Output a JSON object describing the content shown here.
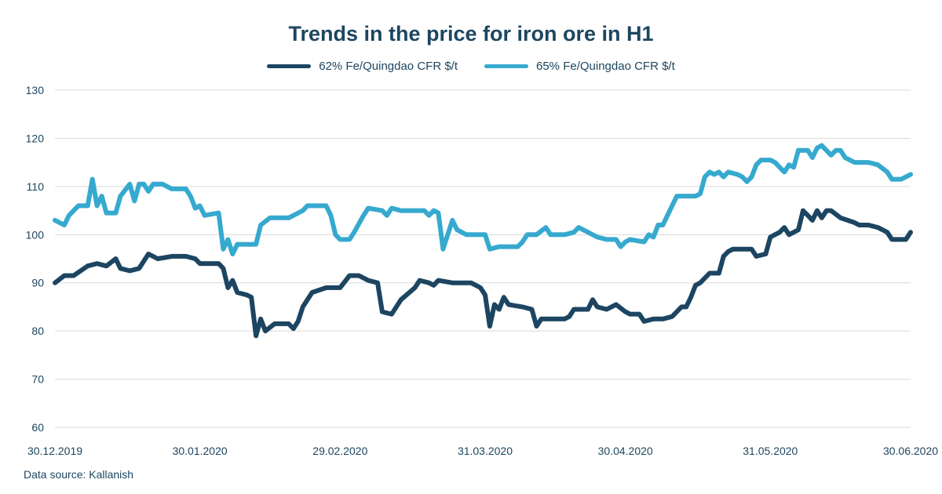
{
  "colors": {
    "series_62": "#1c4561",
    "series_65": "#36a9cf",
    "grid": "#d9d9d9",
    "text": "#1d4660"
  },
  "chart_data": {
    "type": "line",
    "title": "Trends in the price for iron ore in H1",
    "xlabel": "",
    "ylabel": "",
    "ylim": [
      60,
      130
    ],
    "yticks": [
      60,
      70,
      80,
      90,
      100,
      110,
      120,
      130
    ],
    "xlim": [
      "2019-12-30",
      "2020-06-30"
    ],
    "x_tick_labels": [
      "30.12.2019",
      "30.01.2020",
      "29.02.2020",
      "31.03.2020",
      "30.04.2020",
      "31.05.2020",
      "30.06.2020"
    ],
    "grid": true,
    "legend_position": "top-center",
    "source": "Data source: Kallanish",
    "series": [
      {
        "name": "62% Fe/Quingdao CFR $/t",
        "color": "#1c4561",
        "points": [
          [
            "2019-12-30",
            90
          ],
          [
            "2020-01-01",
            91.5
          ],
          [
            "2020-01-03",
            91.5
          ],
          [
            "2020-01-06",
            93.5
          ],
          [
            "2020-01-08",
            94
          ],
          [
            "2020-01-10",
            93.5
          ],
          [
            "2020-01-12",
            95
          ],
          [
            "2020-01-13",
            93
          ],
          [
            "2020-01-15",
            92.5
          ],
          [
            "2020-01-17",
            93
          ],
          [
            "2020-01-19",
            96
          ],
          [
            "2020-01-21",
            95
          ],
          [
            "2020-01-24",
            95.5
          ],
          [
            "2020-01-27",
            95.5
          ],
          [
            "2020-01-29",
            95
          ],
          [
            "2020-01-30",
            94
          ],
          [
            "2020-02-01",
            94
          ],
          [
            "2020-02-03",
            94
          ],
          [
            "2020-02-04",
            93
          ],
          [
            "2020-02-05",
            89
          ],
          [
            "2020-02-06",
            90.5
          ],
          [
            "2020-02-07",
            88
          ],
          [
            "2020-02-09",
            87.5
          ],
          [
            "2020-02-10",
            87
          ],
          [
            "2020-02-11",
            79
          ],
          [
            "2020-02-12",
            82.5
          ],
          [
            "2020-02-13",
            80
          ],
          [
            "2020-02-15",
            81.5
          ],
          [
            "2020-02-18",
            81.5
          ],
          [
            "2020-02-19",
            80.5
          ],
          [
            "2020-02-20",
            82
          ],
          [
            "2020-02-21",
            85
          ],
          [
            "2020-02-23",
            88
          ],
          [
            "2020-02-26",
            89
          ],
          [
            "2020-02-29",
            89
          ],
          [
            "2020-03-02",
            91.5
          ],
          [
            "2020-03-04",
            91.5
          ],
          [
            "2020-03-06",
            90.5
          ],
          [
            "2020-03-08",
            90
          ],
          [
            "2020-03-09",
            84
          ],
          [
            "2020-03-11",
            83.5
          ],
          [
            "2020-03-13",
            86.5
          ],
          [
            "2020-03-16",
            89
          ],
          [
            "2020-03-17",
            90.5
          ],
          [
            "2020-03-19",
            90
          ],
          [
            "2020-03-20",
            89.5
          ],
          [
            "2020-03-21",
            90.5
          ],
          [
            "2020-03-24",
            90
          ],
          [
            "2020-03-28",
            90
          ],
          [
            "2020-03-30",
            89
          ],
          [
            "2020-03-31",
            87.5
          ],
          [
            "2020-04-01",
            81
          ],
          [
            "2020-04-02",
            85.5
          ],
          [
            "2020-04-03",
            84.5
          ],
          [
            "2020-04-04",
            87
          ],
          [
            "2020-04-05",
            85.5
          ],
          [
            "2020-04-08",
            85
          ],
          [
            "2020-04-10",
            84.5
          ],
          [
            "2020-04-11",
            81
          ],
          [
            "2020-04-12",
            82.5
          ],
          [
            "2020-04-15",
            82.5
          ],
          [
            "2020-04-17",
            82.5
          ],
          [
            "2020-04-18",
            83
          ],
          [
            "2020-04-19",
            84.5
          ],
          [
            "2020-04-22",
            84.5
          ],
          [
            "2020-04-23",
            86.5
          ],
          [
            "2020-04-24",
            85
          ],
          [
            "2020-04-26",
            84.5
          ],
          [
            "2020-04-28",
            85.5
          ],
          [
            "2020-04-30",
            84
          ],
          [
            "2020-05-01",
            83.5
          ],
          [
            "2020-05-03",
            83.5
          ],
          [
            "2020-05-04",
            82
          ],
          [
            "2020-05-06",
            82.5
          ],
          [
            "2020-05-08",
            82.5
          ],
          [
            "2020-05-10",
            83
          ],
          [
            "2020-05-12",
            85
          ],
          [
            "2020-05-13",
            85
          ],
          [
            "2020-05-14",
            87
          ],
          [
            "2020-05-15",
            89.5
          ],
          [
            "2020-05-16",
            90
          ],
          [
            "2020-05-18",
            92
          ],
          [
            "2020-05-20",
            92
          ],
          [
            "2020-05-21",
            95.5
          ],
          [
            "2020-05-22",
            96.5
          ],
          [
            "2020-05-23",
            97
          ],
          [
            "2020-05-27",
            97
          ],
          [
            "2020-05-28",
            95.5
          ],
          [
            "2020-05-30",
            96
          ],
          [
            "2020-05-31",
            99.5
          ],
          [
            "2020-06-02",
            100.5
          ],
          [
            "2020-06-03",
            101.5
          ],
          [
            "2020-06-04",
            100
          ],
          [
            "2020-06-05",
            100.5
          ],
          [
            "2020-06-06",
            101
          ],
          [
            "2020-06-07",
            105
          ],
          [
            "2020-06-08",
            104
          ],
          [
            "2020-06-09",
            103
          ],
          [
            "2020-06-10",
            105
          ],
          [
            "2020-06-11",
            103.5
          ],
          [
            "2020-06-12",
            105
          ],
          [
            "2020-06-13",
            105
          ],
          [
            "2020-06-15",
            103.5
          ],
          [
            "2020-06-18",
            102.5
          ],
          [
            "2020-06-19",
            102
          ],
          [
            "2020-06-21",
            102
          ],
          [
            "2020-06-23",
            101.5
          ],
          [
            "2020-06-25",
            100.5
          ],
          [
            "2020-06-26",
            99
          ],
          [
            "2020-06-29",
            99
          ],
          [
            "2020-06-30",
            100.5
          ]
        ]
      },
      {
        "name": "65% Fe/Quingdao CFR $/t",
        "color": "#36a9cf",
        "points": [
          [
            "2019-12-30",
            103
          ],
          [
            "2020-01-01",
            102
          ],
          [
            "2020-01-02",
            104
          ],
          [
            "2020-01-04",
            106
          ],
          [
            "2020-01-06",
            106
          ],
          [
            "2020-01-07",
            111.5
          ],
          [
            "2020-01-08",
            106
          ],
          [
            "2020-01-09",
            108
          ],
          [
            "2020-01-10",
            104.5
          ],
          [
            "2020-01-12",
            104.5
          ],
          [
            "2020-01-13",
            108
          ],
          [
            "2020-01-15",
            110.5
          ],
          [
            "2020-01-16",
            107
          ],
          [
            "2020-01-17",
            110.5
          ],
          [
            "2020-01-18",
            110.5
          ],
          [
            "2020-01-19",
            109
          ],
          [
            "2020-01-20",
            110.5
          ],
          [
            "2020-01-22",
            110.5
          ],
          [
            "2020-01-24",
            109.5
          ],
          [
            "2020-01-27",
            109.5
          ],
          [
            "2020-01-28",
            108
          ],
          [
            "2020-01-29",
            105.5
          ],
          [
            "2020-01-30",
            106
          ],
          [
            "2020-01-31",
            104
          ],
          [
            "2020-02-03",
            104.5
          ],
          [
            "2020-02-04",
            97
          ],
          [
            "2020-02-05",
            99
          ],
          [
            "2020-02-06",
            96
          ],
          [
            "2020-02-07",
            98
          ],
          [
            "2020-02-11",
            98
          ],
          [
            "2020-02-12",
            102
          ],
          [
            "2020-02-14",
            103.5
          ],
          [
            "2020-02-18",
            103.5
          ],
          [
            "2020-02-21",
            105
          ],
          [
            "2020-02-22",
            106
          ],
          [
            "2020-02-26",
            106
          ],
          [
            "2020-02-27",
            104
          ],
          [
            "2020-02-28",
            100
          ],
          [
            "2020-02-29",
            99
          ],
          [
            "2020-03-02",
            99
          ],
          [
            "2020-03-03",
            100.5
          ],
          [
            "2020-03-05",
            104
          ],
          [
            "2020-03-06",
            105.5
          ],
          [
            "2020-03-09",
            105
          ],
          [
            "2020-03-10",
            104
          ],
          [
            "2020-03-11",
            105.5
          ],
          [
            "2020-03-13",
            105
          ],
          [
            "2020-03-18",
            105
          ],
          [
            "2020-03-19",
            104
          ],
          [
            "2020-03-20",
            105
          ],
          [
            "2020-03-21",
            104.5
          ],
          [
            "2020-03-22",
            97
          ],
          [
            "2020-03-24",
            103
          ],
          [
            "2020-03-25",
            101
          ],
          [
            "2020-03-27",
            100
          ],
          [
            "2020-03-30",
            100
          ],
          [
            "2020-03-31",
            100
          ],
          [
            "2020-04-01",
            97
          ],
          [
            "2020-04-03",
            97.5
          ],
          [
            "2020-04-07",
            97.5
          ],
          [
            "2020-04-08",
            98.5
          ],
          [
            "2020-04-09",
            100
          ],
          [
            "2020-04-11",
            100
          ],
          [
            "2020-04-13",
            101.5
          ],
          [
            "2020-04-14",
            100
          ],
          [
            "2020-04-17",
            100
          ],
          [
            "2020-04-19",
            100.5
          ],
          [
            "2020-04-20",
            101.5
          ],
          [
            "2020-04-22",
            100.5
          ],
          [
            "2020-04-24",
            99.5
          ],
          [
            "2020-04-26",
            99
          ],
          [
            "2020-04-28",
            99
          ],
          [
            "2020-04-29",
            97.5
          ],
          [
            "2020-04-30",
            98.5
          ],
          [
            "2020-05-01",
            99
          ],
          [
            "2020-05-04",
            98.5
          ],
          [
            "2020-05-05",
            100
          ],
          [
            "2020-05-06",
            99.5
          ],
          [
            "2020-05-07",
            102
          ],
          [
            "2020-05-08",
            102
          ],
          [
            "2020-05-09",
            104
          ],
          [
            "2020-05-10",
            106
          ],
          [
            "2020-05-11",
            108
          ],
          [
            "2020-05-15",
            108
          ],
          [
            "2020-05-16",
            108.5
          ],
          [
            "2020-05-17",
            112
          ],
          [
            "2020-05-18",
            113
          ],
          [
            "2020-05-19",
            112.5
          ],
          [
            "2020-05-20",
            113
          ],
          [
            "2020-05-21",
            112
          ],
          [
            "2020-05-22",
            113
          ],
          [
            "2020-05-24",
            112.5
          ],
          [
            "2020-05-25",
            112
          ],
          [
            "2020-05-26",
            111
          ],
          [
            "2020-05-27",
            112
          ],
          [
            "2020-05-28",
            114.5
          ],
          [
            "2020-05-29",
            115.5
          ],
          [
            "2020-05-31",
            115.5
          ],
          [
            "2020-06-01",
            115
          ],
          [
            "2020-06-02",
            114
          ],
          [
            "2020-06-03",
            113
          ],
          [
            "2020-06-04",
            114.5
          ],
          [
            "2020-06-05",
            114
          ],
          [
            "2020-06-06",
            117.5
          ],
          [
            "2020-06-08",
            117.5
          ],
          [
            "2020-06-09",
            116
          ],
          [
            "2020-06-10",
            118
          ],
          [
            "2020-06-11",
            118.5
          ],
          [
            "2020-06-12",
            117.5
          ],
          [
            "2020-06-13",
            116.5
          ],
          [
            "2020-06-14",
            117.5
          ],
          [
            "2020-06-15",
            117.5
          ],
          [
            "2020-06-16",
            116
          ],
          [
            "2020-06-18",
            115
          ],
          [
            "2020-06-21",
            115
          ],
          [
            "2020-06-23",
            114.5
          ],
          [
            "2020-06-25",
            113
          ],
          [
            "2020-06-26",
            111.5
          ],
          [
            "2020-06-28",
            111.5
          ],
          [
            "2020-06-30",
            112.5
          ]
        ]
      }
    ]
  }
}
